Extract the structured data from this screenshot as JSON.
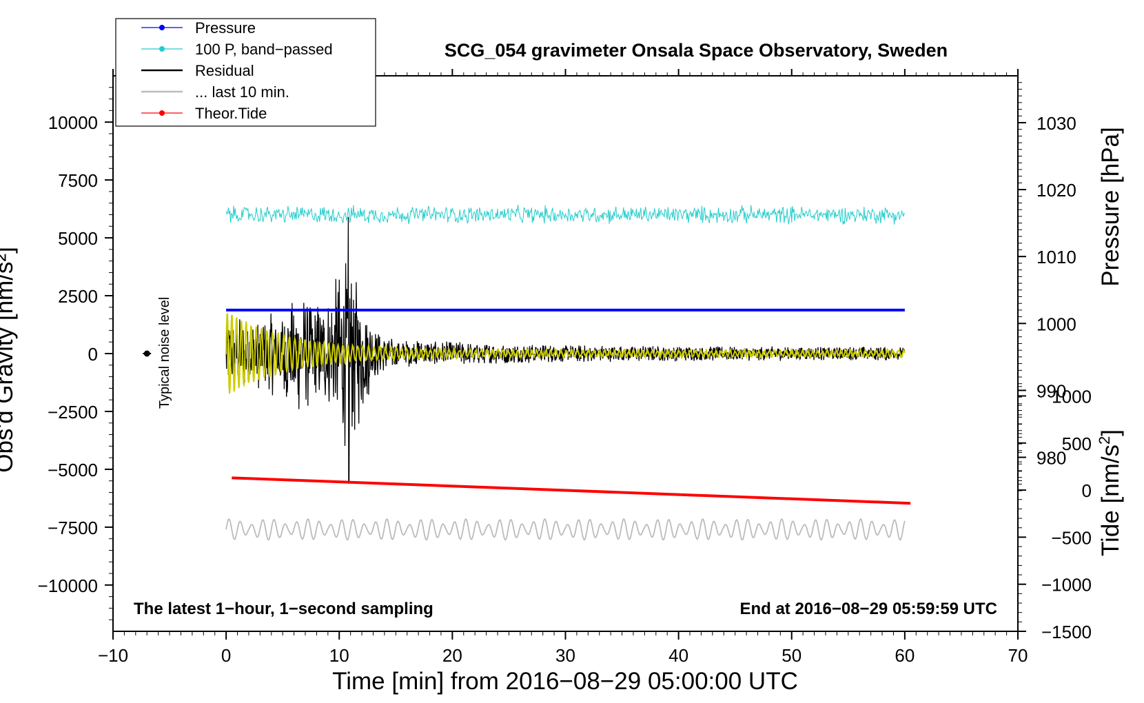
{
  "chart_data": {
    "type": "line",
    "title": "SCG_054 gravimeter Onsala Space Observatory, Sweden",
    "xlabel": "Time [min] from 2016−08−29 05:00:00 UTC",
    "ylabel": "Obs'd Gravity [nm/s²]",
    "y2label": "Pressure [hPa]",
    "y3label": "Tide [nm/s",
    "y3label_sup": "2",
    "y3label_end": "]",
    "note_left": "The latest 1−hour, 1−second sampling",
    "note_right": "End at 2016−08−29 05:59:59 UTC",
    "noise_label": "Typical noise level",
    "xlim": [
      -10,
      70
    ],
    "ylim": [
      -12000,
      12000
    ],
    "y2lim": [
      954,
      1037
    ],
    "y3lim": [
      -1500,
      4400
    ],
    "xticks": [
      -10,
      0,
      10,
      20,
      30,
      40,
      50,
      60,
      70
    ],
    "xtick_labels": [
      "−10",
      "0",
      "10",
      "20",
      "30",
      "40",
      "50",
      "60",
      "70"
    ],
    "yticks": [
      10000,
      7500,
      5000,
      2500,
      0,
      -2500,
      -5000,
      -7500,
      -10000
    ],
    "ytick_labels": [
      "10000",
      "7500",
      "5000",
      "2500",
      "0",
      "−2500",
      "−5000",
      "−7500",
      "−10000"
    ],
    "y2ticks": [
      1030,
      1020,
      1010,
      1000,
      990,
      980
    ],
    "y2tick_labels": [
      "1030",
      "1020",
      "1010",
      "1000",
      "990",
      "980"
    ],
    "y3ticks": [
      1000,
      500,
      0,
      -500,
      -1000,
      -1500
    ],
    "y3tick_labels": [
      "1000",
      "500",
      "0",
      "−500",
      "−1000",
      "−1500"
    ],
    "legend": {
      "position": "top-left",
      "entries": [
        {
          "name": "Pressure",
          "color": "#0000ff",
          "marker": true
        },
        {
          "name": "100 P, band−passed",
          "color": "#22cccc",
          "marker": true
        },
        {
          "name": "Residual",
          "color": "#000000",
          "marker": false
        },
        {
          "name": "... last 10 min.",
          "color": "#bbbbbb",
          "marker": false
        },
        {
          "name": "Theor.Tide",
          "color": "#ff0000",
          "marker": true
        }
      ]
    },
    "series": [
      {
        "name": "Pressure",
        "axis": "y2",
        "color": "#0000ff",
        "x": [
          0,
          60
        ],
        "values": [
          1002,
          1002
        ]
      },
      {
        "name": "100 P, band−passed",
        "axis": "y",
        "color": "#22cccc",
        "center": 6000,
        "amplitude": 450,
        "x_range": [
          0,
          60
        ]
      },
      {
        "name": "Residual",
        "axis": "y",
        "color": "#000000",
        "center": 0,
        "peak_max": 5900,
        "peak_min": -5600,
        "peak_time": 10.8,
        "x_range": [
          0,
          60
        ]
      },
      {
        "name": "Residual (filtered)",
        "axis": "y",
        "color": "#cccc00",
        "center": 0,
        "peak_amplitude": 1700,
        "x_range": [
          0,
          60
        ]
      },
      {
        "name": "... last 10 min.",
        "axis": "y",
        "color": "#bbbbbb",
        "center": -7600,
        "amplitude": 450,
        "x_range": [
          0,
          60
        ]
      },
      {
        "name": "Theor.Tide",
        "axis": "y3",
        "color": "#ff0000",
        "x": [
          0.5,
          60.5
        ],
        "values": [
          130,
          -140
        ]
      }
    ],
    "noise_marker": {
      "x": -7,
      "y": 0
    }
  }
}
